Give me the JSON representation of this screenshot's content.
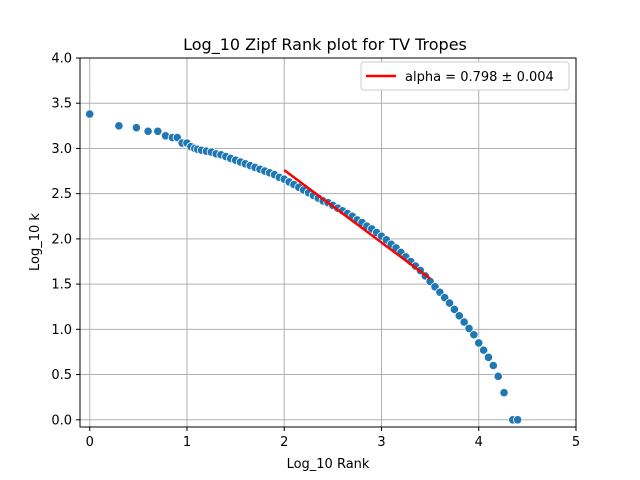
{
  "chart_data": {
    "type": "scatter",
    "title": "Log_10 Zipf Rank plot for TV Tropes",
    "xlabel": "Log_10 Rank",
    "ylabel": "Log_10 k",
    "xlim": [
      -0.1,
      5
    ],
    "ylim": [
      -0.08,
      4.0
    ],
    "xticks": [
      "0",
      "1",
      "2",
      "3",
      "4",
      "5"
    ],
    "yticks": [
      "0.0",
      "0.5",
      "1.0",
      "1.5",
      "2.0",
      "2.5",
      "3.0",
      "3.5",
      "4.0"
    ],
    "grid": true,
    "legend_position": "top-right",
    "colors": {
      "points": "#1f77b4",
      "fit": "#ff0000",
      "grid": "#b0b0b0"
    },
    "series": [
      {
        "kind": "scatter",
        "points": [
          [
            0.0,
            3.38
          ],
          [
            0.3,
            3.25
          ],
          [
            0.48,
            3.23
          ],
          [
            0.6,
            3.19
          ],
          [
            0.7,
            3.19
          ],
          [
            0.78,
            3.14
          ],
          [
            0.85,
            3.12
          ],
          [
            0.9,
            3.12
          ],
          [
            0.95,
            3.06
          ],
          [
            1.0,
            3.06
          ],
          [
            1.04,
            3.02
          ],
          [
            1.08,
            3.0
          ],
          [
            1.11,
            2.99
          ],
          [
            1.15,
            2.98
          ],
          [
            1.2,
            2.97
          ],
          [
            1.25,
            2.96
          ],
          [
            1.3,
            2.94
          ],
          [
            1.35,
            2.93
          ],
          [
            1.4,
            2.91
          ],
          [
            1.45,
            2.89
          ],
          [
            1.5,
            2.87
          ],
          [
            1.55,
            2.85
          ],
          [
            1.6,
            2.83
          ],
          [
            1.65,
            2.81
          ],
          [
            1.7,
            2.79
          ],
          [
            1.75,
            2.77
          ],
          [
            1.8,
            2.75
          ],
          [
            1.85,
            2.73
          ],
          [
            1.9,
            2.71
          ],
          [
            1.95,
            2.68
          ],
          [
            2.0,
            2.66
          ],
          [
            2.05,
            2.63
          ],
          [
            2.1,
            2.6
          ],
          [
            2.15,
            2.57
          ],
          [
            2.2,
            2.54
          ],
          [
            2.25,
            2.51
          ],
          [
            2.3,
            2.48
          ],
          [
            2.35,
            2.45
          ],
          [
            2.4,
            2.42
          ],
          [
            2.45,
            2.4
          ],
          [
            2.5,
            2.37
          ],
          [
            2.55,
            2.34
          ],
          [
            2.6,
            2.31
          ],
          [
            2.65,
            2.28
          ],
          [
            2.7,
            2.25
          ],
          [
            2.75,
            2.21
          ],
          [
            2.8,
            2.18
          ],
          [
            2.85,
            2.14
          ],
          [
            2.9,
            2.11
          ],
          [
            2.95,
            2.07
          ],
          [
            3.0,
            2.03
          ],
          [
            3.05,
            1.99
          ],
          [
            3.1,
            1.94
          ],
          [
            3.15,
            1.9
          ],
          [
            3.2,
            1.85
          ],
          [
            3.25,
            1.8
          ],
          [
            3.3,
            1.75
          ],
          [
            3.35,
            1.7
          ],
          [
            3.4,
            1.65
          ],
          [
            3.45,
            1.59
          ],
          [
            3.5,
            1.53
          ],
          [
            3.55,
            1.47
          ],
          [
            3.6,
            1.41
          ],
          [
            3.65,
            1.35
          ],
          [
            3.7,
            1.29
          ],
          [
            3.75,
            1.22
          ],
          [
            3.8,
            1.15
          ],
          [
            3.85,
            1.08
          ],
          [
            3.9,
            1.01
          ],
          [
            3.95,
            0.94
          ],
          [
            4.0,
            0.85
          ],
          [
            4.05,
            0.77
          ],
          [
            4.1,
            0.69
          ],
          [
            4.15,
            0.6
          ],
          [
            4.2,
            0.48
          ],
          [
            4.26,
            0.3
          ],
          [
            4.35,
            0.0
          ],
          [
            4.4,
            0.0
          ]
        ]
      },
      {
        "kind": "line",
        "name": "alpha = 0.798 ± 0.004",
        "points": [
          [
            2.0,
            2.76
          ],
          [
            3.5,
            1.56
          ]
        ]
      }
    ],
    "legend": [
      "alpha = 0.798 ± 0.004"
    ]
  }
}
